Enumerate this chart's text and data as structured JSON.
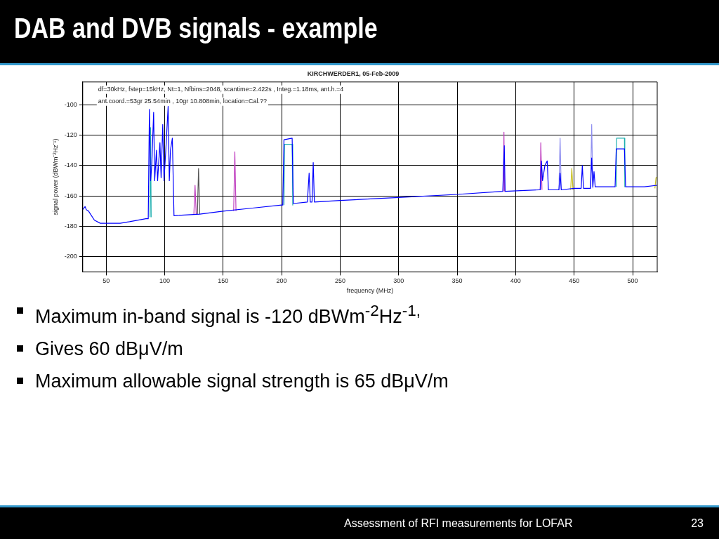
{
  "chart_data": {
    "type": "line",
    "title": "DAB and DVB signals - example",
    "subtitle": "KIRCHWERDER1, 05-Feb-2009",
    "xlabel": "frequency (MHz)",
    "ylabel": "signal power (dBWm⁻²Hz⁻¹)",
    "xlim": [
      30,
      521
    ],
    "xticks": [
      50,
      100,
      150,
      200,
      250,
      300,
      350,
      400,
      450,
      500
    ],
    "ylim": [
      -210,
      -85
    ],
    "yticks": [
      -200,
      -180,
      -160,
      -140,
      -120,
      -100
    ],
    "grid": true,
    "legend": false,
    "marker": "none",
    "line_style": "solid",
    "series": [
      {
        "color": "#0000ff",
        "x": [
          30,
          32,
          33,
          35,
          40,
          45,
          55,
          62,
          70,
          84,
          86,
          87,
          88,
          89,
          90.6,
          91.5,
          93,
          94,
          96,
          97,
          98.4,
          99.5,
          101,
          103,
          104,
          105,
          106.6,
          108,
          130,
          150,
          175,
          200,
          201,
          202,
          209,
          210,
          222,
          223.5,
          224.5,
          226,
          227,
          228,
          250,
          300,
          350,
          389,
          390.3,
          391,
          420,
          421,
          422,
          423,
          425,
          427,
          428,
          437,
          438,
          439,
          450,
          456,
          457,
          458,
          464,
          465,
          466,
          467,
          468,
          485,
          486,
          493,
          494,
          510,
          521
        ],
        "values": [
          -169,
          -167,
          -169,
          -170,
          -176,
          -178,
          -178,
          -178,
          -177,
          -175,
          -175,
          -103,
          -150,
          -140,
          -105,
          -150,
          -130,
          -150,
          -125,
          -148,
          -113,
          -150,
          -130,
          -101,
          -150,
          -130,
          -122,
          -173,
          -172,
          -170,
          -168,
          -166,
          -166,
          -123,
          -122,
          -165,
          -164,
          -145,
          -164,
          -164,
          -138,
          -164,
          -163,
          -161,
          -159,
          -157,
          -127,
          -157,
          -156,
          -156,
          -137,
          -150,
          -140,
          -137,
          -156,
          -156,
          -145,
          -156,
          -155,
          -155,
          -140,
          -155,
          -155,
          -135,
          -154,
          -144,
          -154,
          -154,
          -129,
          -129,
          -154,
          -154,
          -153
        ]
      },
      {
        "color": "#20b0b0",
        "x": [
          87.5,
          88,
          88.5,
          200,
          202,
          202.5,
          209,
          209.5,
          300,
          486,
          486.3,
          493,
          493.3
        ],
        "values": [
          -174,
          -115,
          -174,
          null,
          -166,
          -126,
          -126,
          -166,
          null,
          -154,
          -122,
          -122,
          -154
        ]
      },
      {
        "color": "#c040c0",
        "x": [
          125,
          126,
          127,
          140,
          159,
          160,
          161,
          300,
          389.5,
          390,
          390.5,
          410,
          421,
          421.5,
          422.5
        ],
        "values": [
          -172,
          -153,
          -172,
          null,
          -170,
          -131,
          -170,
          null,
          -157,
          -118,
          -157,
          null,
          -156,
          -125,
          -156
        ]
      },
      {
        "color": "#555555",
        "x": [
          128,
          129,
          130
        ],
        "values": [
          -172,
          -142,
          -172
        ]
      },
      {
        "color": "#9090f0",
        "x": [
          437,
          438,
          439,
          450,
          464,
          465,
          466
        ],
        "values": [
          -156,
          -122,
          -156,
          null,
          -155,
          -113,
          -155
        ]
      },
      {
        "color": "#c8c020",
        "x": [
          447,
          448,
          449,
          510,
          519,
          520,
          521
        ],
        "values": [
          -156,
          -142,
          -156,
          null,
          -155,
          -148,
          -148
        ]
      }
    ],
    "annotations": [
      "df=30kHz, fstep=15kHz, Nt=1, Nfbins=2048, scantime=2.422s , Integ.=1.18ms, ant.h.=4",
      "ant.coord.=53gr 25.54min , 10gr 10.808min, location=Cal.??",
      "Maximum in-band signal is -120 dBWm$^{-2}$Hz$^{-1,}$",
      "Gives 60 dBμV/m",
      "Maximum allowable signal strength is 65 dBμV/m",
      "Assessment of RFI measurements for LOFAR",
      "23"
    ]
  }
}
